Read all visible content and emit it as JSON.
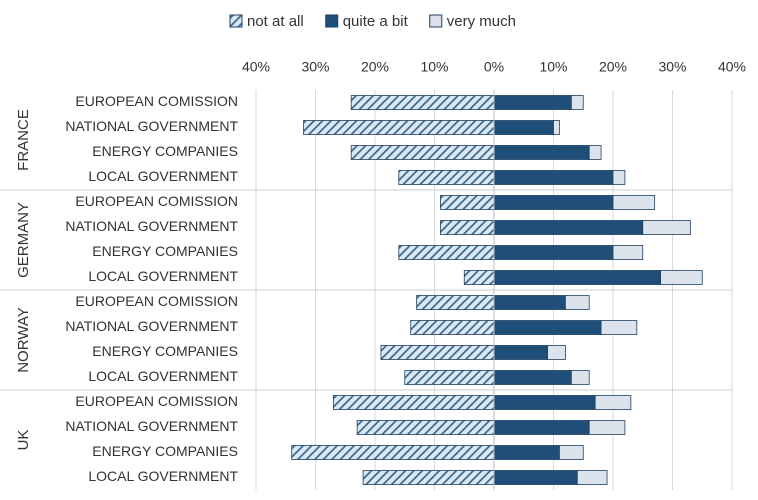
{
  "chart_data": {
    "type": "diverging-bar",
    "groups": [
      {
        "name": "FRANCE",
        "categories": [
          "EUROPEAN COMISSION",
          "NATIONAL GOVERNMENT",
          "ENERGY COMPANIES",
          "LOCAL GOVERNMENT"
        ]
      },
      {
        "name": "GERMANY",
        "categories": [
          "EUROPEAN COMISSION",
          "NATIONAL GOVERNMENT",
          "ENERGY COMPANIES",
          "LOCAL GOVERNMENT"
        ]
      },
      {
        "name": "NORWAY",
        "categories": [
          "EUROPEAN COMISSION",
          "NATIONAL GOVERNMENT",
          "ENERGY COMPANIES",
          "LOCAL GOVERNMENT"
        ]
      },
      {
        "name": "UK",
        "categories": [
          "EUROPEAN COMISSION",
          "NATIONAL GOVERNMENT",
          "ENERGY COMPANIES",
          "LOCAL GOVERNMENT"
        ]
      }
    ],
    "series": [
      {
        "name": "not at all",
        "color": "#2e5e86",
        "pattern": "hatch",
        "values": [
          -24,
          -32,
          -24,
          -16,
          -9,
          -9,
          -16,
          -5,
          -13,
          -14,
          -19,
          -15,
          -27,
          -23,
          -34,
          -22
        ]
      },
      {
        "name": "quite a bit",
        "color": "#1f4e79",
        "values": [
          13,
          10,
          16,
          20,
          20,
          25,
          20,
          28,
          12,
          18,
          9,
          13,
          17,
          16,
          11,
          14
        ]
      },
      {
        "name": "very much",
        "color": "#dde3ec",
        "values": [
          2,
          1,
          2,
          2,
          7,
          8,
          5,
          7,
          4,
          6,
          3,
          3,
          6,
          6,
          4,
          5
        ]
      }
    ],
    "xlim": [
      -40,
      40
    ],
    "xticks": [
      {
        "value": -40,
        "label": "40%"
      },
      {
        "value": -30,
        "label": "30%"
      },
      {
        "value": -20,
        "label": "20%"
      },
      {
        "value": -10,
        "label": "10%"
      },
      {
        "value": 0,
        "label": "0%"
      },
      {
        "value": 10,
        "label": "10%"
      },
      {
        "value": 20,
        "label": "20%"
      },
      {
        "value": 30,
        "label": "30%"
      },
      {
        "value": 40,
        "label": "40%"
      }
    ],
    "grid": true
  }
}
